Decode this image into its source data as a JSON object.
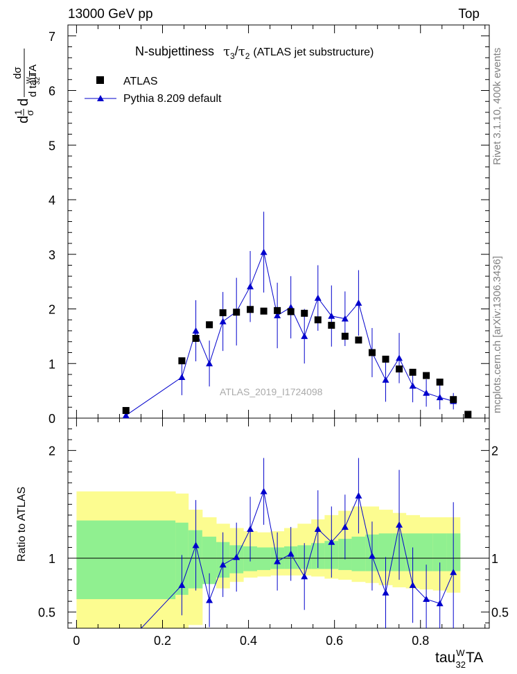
{
  "header": {
    "energy_label": "13000 GeV pp",
    "process_label": "Top",
    "plot_title_prefix": "N-subjettiness",
    "plot_title_tau": "τ",
    "plot_title_sub3": "3",
    "plot_title_slash": "/",
    "plot_title_sub2": "2",
    "plot_title_suffix": "(ATLAS jet substructure)"
  },
  "side_text": {
    "rivet": "Rivet 3.1.10,  400k events",
    "mcplots": "mcplots.cern.ch [arXiv:1306.3436]"
  },
  "watermark": "ATLAS_2019_I1724098",
  "axes": {
    "y_main": {
      "d1": "d",
      "one": "1",
      "sigma": "σ",
      "d2": "d",
      "num": "dσ",
      "den": "d tau",
      "den_sup": "W",
      "den_sub": "32",
      "den_end": "TA"
    },
    "y_ratio": "Ratio to ATLAS",
    "x": {
      "base": "tau",
      "sup": "W",
      "sub": "32",
      "end": "TA"
    }
  },
  "legend": {
    "data_label": "ATLAS",
    "mc_label": "Pythia 8.209 default"
  },
  "colors": {
    "data": "#000000",
    "mc": "#0000cc",
    "band_inner": "#90f090",
    "band_outer": "#fcfc90"
  },
  "chart_data": [
    {
      "panel": "main",
      "type": "scatter",
      "xlim": [
        -0.02,
        0.96
      ],
      "ylim": [
        0,
        7.2
      ],
      "yticks": [
        0,
        1,
        2,
        3,
        4,
        5,
        6,
        7
      ],
      "ytick_labels": [
        "0",
        "1",
        "2",
        "3",
        "4",
        "5",
        "6",
        "7"
      ],
      "series": [
        {
          "name": "ATLAS",
          "x": [
            0.115,
            0.245,
            0.2775,
            0.309,
            0.3405,
            0.372,
            0.404,
            0.4355,
            0.467,
            0.4985,
            0.53,
            0.5615,
            0.593,
            0.6245,
            0.656,
            0.6875,
            0.719,
            0.7505,
            0.782,
            0.8135,
            0.845,
            0.8765,
            0.9105
          ],
          "y": [
            0.14,
            1.05,
            1.46,
            1.71,
            1.93,
            1.94,
            1.99,
            1.96,
            1.97,
            1.95,
            1.92,
            1.8,
            1.7,
            1.5,
            1.43,
            1.2,
            1.08,
            0.9,
            0.84,
            0.78,
            0.66,
            0.34,
            0.07
          ]
        },
        {
          "name": "Pythia 8.209 default",
          "x": [
            0.115,
            0.245,
            0.2775,
            0.309,
            0.3405,
            0.372,
            0.404,
            0.4355,
            0.467,
            0.4985,
            0.53,
            0.5615,
            0.593,
            0.6245,
            0.656,
            0.6875,
            0.719,
            0.7505,
            0.782,
            0.8135,
            0.845,
            0.8765
          ],
          "y": [
            0.05,
            0.75,
            1.6,
            1.0,
            1.77,
            1.95,
            2.41,
            3.04,
            1.88,
            2.03,
            1.5,
            2.2,
            1.87,
            1.82,
            2.11,
            1.2,
            0.7,
            1.1,
            0.59,
            0.46,
            0.38,
            0.31
          ],
          "yerr": [
            0.05,
            0.33,
            0.56,
            0.42,
            0.54,
            0.62,
            0.65,
            0.74,
            0.6,
            0.57,
            0.5,
            0.6,
            0.56,
            0.5,
            0.6,
            0.45,
            0.4,
            0.46,
            0.3,
            0.25,
            0.22,
            0.15
          ]
        }
      ]
    },
    {
      "panel": "ratio",
      "type": "line",
      "xlim": [
        -0.02,
        0.96
      ],
      "ylim": [
        0.35,
        2.3
      ],
      "yticks": [
        0.5,
        1,
        2
      ],
      "ytick_labels": [
        "0.5",
        "1",
        "2"
      ],
      "xticks": [
        0,
        0.2,
        0.4,
        0.6,
        0.8
      ],
      "xtick_labels": [
        "0",
        "0.2",
        "0.4",
        "0.6",
        "0.8"
      ],
      "reference_line": 1,
      "bands": {
        "edges": [
          0,
          0.23,
          0.26,
          0.2925,
          0.325,
          0.356,
          0.388,
          0.42,
          0.451,
          0.483,
          0.514,
          0.546,
          0.577,
          0.609,
          0.64,
          0.672,
          0.703,
          0.735,
          0.766,
          0.798,
          0.829,
          0.861,
          0.892
        ],
        "inner_lo": [
          0.62,
          0.66,
          0.72,
          0.76,
          0.82,
          0.86,
          0.88,
          0.89,
          0.9,
          0.9,
          0.9,
          0.9,
          0.9,
          0.89,
          0.88,
          0.88,
          0.88,
          0.88,
          0.88,
          0.88,
          0.88,
          0.88
        ],
        "inner_hi": [
          1.35,
          1.33,
          1.26,
          1.2,
          1.15,
          1.12,
          1.11,
          1.1,
          1.1,
          1.11,
          1.12,
          1.14,
          1.16,
          1.18,
          1.2,
          1.22,
          1.23,
          1.23,
          1.23,
          1.23,
          1.23,
          1.23
        ],
        "outer_lo": [
          0.2,
          0.3,
          0.38,
          0.8,
          0.72,
          0.78,
          0.82,
          0.83,
          0.84,
          0.84,
          0.84,
          0.83,
          0.81,
          0.8,
          0.78,
          0.77,
          0.75,
          0.73,
          0.72,
          0.71,
          0.7,
          0.68
        ],
        "outer_hi": [
          1.62,
          1.6,
          1.45,
          1.38,
          1.32,
          1.28,
          1.25,
          1.24,
          1.25,
          1.28,
          1.32,
          1.36,
          1.4,
          1.44,
          1.48,
          1.48,
          1.45,
          1.42,
          1.4,
          1.38,
          1.38,
          1.38
        ]
      },
      "series": [
        {
          "name": "Pythia 8.209 default / ATLAS",
          "x": [
            0.115,
            0.245,
            0.2775,
            0.309,
            0.3405,
            0.372,
            0.404,
            0.4355,
            0.467,
            0.4985,
            0.53,
            0.5615,
            0.593,
            0.6245,
            0.656,
            0.6875,
            0.719,
            0.7505,
            0.782,
            0.8135,
            0.845,
            0.8765
          ],
          "y": [
            0.2,
            0.75,
            1.12,
            0.61,
            0.94,
            1.01,
            1.27,
            1.62,
            0.97,
            1.04,
            0.83,
            1.27,
            1.15,
            1.29,
            1.58,
            1.02,
            0.68,
            1.31,
            0.75,
            0.62,
            0.58,
            0.87
          ],
          "yerr": [
            0.05,
            0.28,
            0.42,
            0.25,
            0.3,
            0.32,
            0.3,
            0.31,
            0.27,
            0.25,
            0.31,
            0.36,
            0.33,
            0.3,
            0.35,
            0.32,
            0.33,
            0.51,
            0.35,
            0.32,
            0.38,
            0.65
          ]
        }
      ]
    }
  ]
}
